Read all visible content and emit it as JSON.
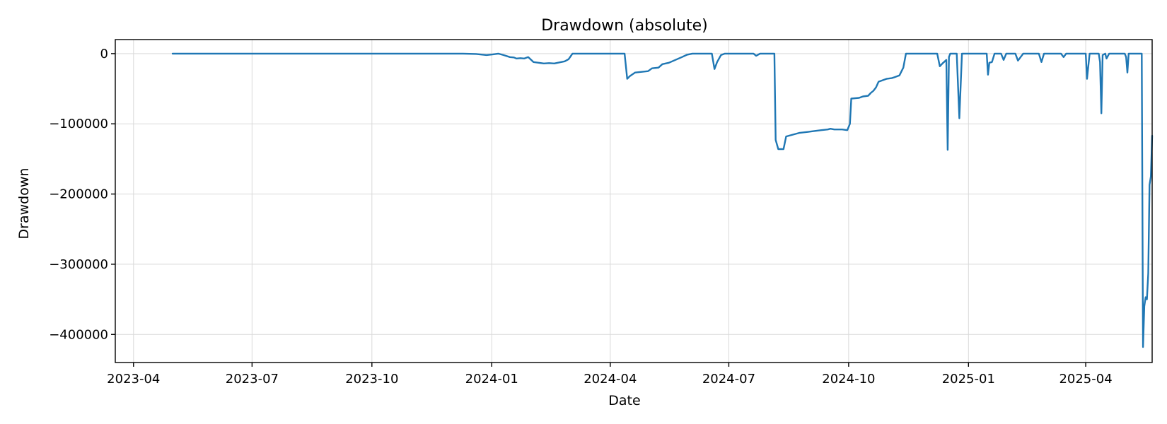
{
  "chart_data": {
    "type": "line",
    "title": "Drawdown (absolute)",
    "xlabel": "Date",
    "ylabel": "Drawdown",
    "grid": true,
    "legend": "none",
    "xlim": [
      "2023-03-18",
      "2025-05-22"
    ],
    "ylim": [
      -440000,
      20000
    ],
    "x_ticks": [
      "2023-04-01",
      "2023-07-01",
      "2023-10-01",
      "2024-01-01",
      "2024-04-01",
      "2024-07-01",
      "2024-10-01",
      "2025-01-01",
      "2025-04-01"
    ],
    "x_tick_labels": [
      "2023-04",
      "2023-07",
      "2023-10",
      "2024-01",
      "2024-04",
      "2024-07",
      "2024-10",
      "2025-01",
      "2025-04"
    ],
    "y_ticks": [
      0,
      -100000,
      -200000,
      -300000,
      -400000
    ],
    "y_tick_labels": [
      "0",
      "−100000",
      "−200000",
      "−300000",
      "−400000"
    ],
    "series": [
      {
        "color": "#1f77b4",
        "points": [
          [
            "2023-05-01",
            0
          ],
          [
            "2023-12-10",
            0
          ],
          [
            "2023-12-20",
            -500
          ],
          [
            "2023-12-28",
            -2000
          ],
          [
            "2024-01-02",
            -1000
          ],
          [
            "2024-01-06",
            0
          ],
          [
            "2024-01-10",
            -2000
          ],
          [
            "2024-01-15",
            -5000
          ],
          [
            "2024-01-18",
            -5500
          ],
          [
            "2024-01-20",
            -7000
          ],
          [
            "2024-01-23",
            -6500
          ],
          [
            "2024-01-26",
            -7000
          ],
          [
            "2024-01-29",
            -5000
          ],
          [
            "2024-02-02",
            -12000
          ],
          [
            "2024-02-06",
            -13000
          ],
          [
            "2024-02-10",
            -14000
          ],
          [
            "2024-02-14",
            -13500
          ],
          [
            "2024-02-18",
            -14000
          ],
          [
            "2024-02-22",
            -12500
          ],
          [
            "2024-02-26",
            -11000
          ],
          [
            "2024-02-29",
            -8000
          ],
          [
            "2024-03-03",
            0
          ],
          [
            "2024-04-12",
            0
          ],
          [
            "2024-04-14",
            -36000
          ],
          [
            "2024-04-16",
            -32000
          ],
          [
            "2024-04-20",
            -27000
          ],
          [
            "2024-04-25",
            -26000
          ],
          [
            "2024-04-30",
            -25000
          ],
          [
            "2024-05-03",
            -21000
          ],
          [
            "2024-05-08",
            -20000
          ],
          [
            "2024-05-11",
            -15000
          ],
          [
            "2024-05-16",
            -13000
          ],
          [
            "2024-05-21",
            -9000
          ],
          [
            "2024-05-26",
            -5000
          ],
          [
            "2024-05-30",
            -1500
          ],
          [
            "2024-06-03",
            0
          ],
          [
            "2024-06-18",
            0
          ],
          [
            "2024-06-20",
            -22000
          ],
          [
            "2024-06-22",
            -12000
          ],
          [
            "2024-06-25",
            -2000
          ],
          [
            "2024-06-28",
            0
          ],
          [
            "2024-07-20",
            0
          ],
          [
            "2024-07-22",
            -3000
          ],
          [
            "2024-07-25",
            0
          ],
          [
            "2024-08-05",
            0
          ],
          [
            "2024-08-06",
            -123000
          ],
          [
            "2024-08-08",
            -136000
          ],
          [
            "2024-08-12",
            -136000
          ],
          [
            "2024-08-14",
            -118000
          ],
          [
            "2024-08-20",
            -115000
          ],
          [
            "2024-08-24",
            -113000
          ],
          [
            "2024-09-02",
            -111000
          ],
          [
            "2024-09-10",
            -109000
          ],
          [
            "2024-09-15",
            -108000
          ],
          [
            "2024-09-17",
            -107000
          ],
          [
            "2024-09-20",
            -108000
          ],
          [
            "2024-09-26",
            -108000
          ],
          [
            "2024-09-30",
            -109000
          ],
          [
            "2024-10-02",
            -100000
          ],
          [
            "2024-10-03",
            -64000
          ],
          [
            "2024-10-09",
            -63000
          ],
          [
            "2024-10-12",
            -61000
          ],
          [
            "2024-10-16",
            -60000
          ],
          [
            "2024-10-18",
            -56000
          ],
          [
            "2024-10-20",
            -53000
          ],
          [
            "2024-10-22",
            -48000
          ],
          [
            "2024-10-24",
            -40000
          ],
          [
            "2024-10-27",
            -38000
          ],
          [
            "2024-10-30",
            -36000
          ],
          [
            "2024-11-03",
            -35000
          ],
          [
            "2024-11-06",
            -33000
          ],
          [
            "2024-11-09",
            -31000
          ],
          [
            "2024-11-12",
            -20000
          ],
          [
            "2024-11-14",
            0
          ],
          [
            "2024-12-08",
            0
          ],
          [
            "2024-12-10",
            -18000
          ],
          [
            "2024-12-12",
            -14000
          ],
          [
            "2024-12-15",
            -9000
          ],
          [
            "2024-12-16",
            -137000
          ],
          [
            "2024-12-17",
            -5000
          ],
          [
            "2024-12-18",
            0
          ],
          [
            "2024-12-23",
            0
          ],
          [
            "2024-12-25",
            -92000
          ],
          [
            "2024-12-27",
            0
          ],
          [
            "2025-01-15",
            0
          ],
          [
            "2025-01-16",
            -30000
          ],
          [
            "2025-01-17",
            -13000
          ],
          [
            "2025-01-19",
            -12000
          ],
          [
            "2025-01-21",
            0
          ],
          [
            "2025-01-26",
            0
          ],
          [
            "2025-01-28",
            -9000
          ],
          [
            "2025-01-30",
            0
          ],
          [
            "2025-02-06",
            0
          ],
          [
            "2025-02-08",
            -10000
          ],
          [
            "2025-02-10",
            -5000
          ],
          [
            "2025-02-12",
            0
          ],
          [
            "2025-02-24",
            0
          ],
          [
            "2025-02-26",
            -12000
          ],
          [
            "2025-02-28",
            0
          ],
          [
            "2025-03-13",
            0
          ],
          [
            "2025-03-15",
            -5000
          ],
          [
            "2025-03-17",
            0
          ],
          [
            "2025-04-01",
            0
          ],
          [
            "2025-04-02",
            -36000
          ],
          [
            "2025-04-04",
            0
          ],
          [
            "2025-04-11",
            0
          ],
          [
            "2025-04-12",
            -12000
          ],
          [
            "2025-04-13",
            -85000
          ],
          [
            "2025-04-14",
            -2000
          ],
          [
            "2025-04-16",
            0
          ],
          [
            "2025-04-17",
            -7000
          ],
          [
            "2025-04-19",
            0
          ],
          [
            "2025-05-01",
            0
          ],
          [
            "2025-05-02",
            -5000
          ],
          [
            "2025-05-03",
            -27000
          ],
          [
            "2025-05-04",
            0
          ],
          [
            "2025-05-14",
            0
          ],
          [
            "2025-05-15",
            -418000
          ],
          [
            "2025-05-16",
            -360000
          ],
          [
            "2025-05-17",
            -347000
          ],
          [
            "2025-05-18",
            -350000
          ],
          [
            "2025-05-19",
            -313000
          ],
          [
            "2025-05-20",
            -187000
          ],
          [
            "2025-05-21",
            -175000
          ],
          [
            "2025-05-22",
            -117000
          ]
        ]
      }
    ]
  }
}
